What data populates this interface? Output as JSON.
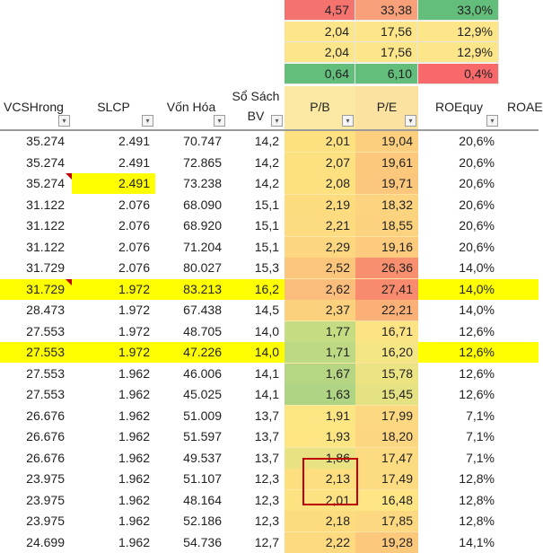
{
  "stats": [
    {
      "pb": "4,57",
      "pe": "33,38",
      "roe": "33,0%",
      "c_pb": "#f4736f",
      "c_pe": "#f8a079",
      "c_roe": "#63be7b"
    },
    {
      "pb": "2,04",
      "pe": "17,56",
      "roe": "12,9%",
      "c_pb": "#fde68a",
      "c_pe": "#fde68a",
      "c_roe": "#fde68a"
    },
    {
      "pb": "2,04",
      "pe": "17,56",
      "roe": "12,9%",
      "c_pb": "#fde68a",
      "c_pe": "#fde68a",
      "c_roe": "#fde68a"
    },
    {
      "pb": "0,64",
      "pe": "6,10",
      "roe": "0,4%",
      "c_pb": "#63be7b",
      "c_pe": "#63be7b",
      "c_roe": "#f8696b"
    }
  ],
  "headers": {
    "vcs": "VCSHrong",
    "slcp": "SLCP",
    "vonhoa": "Vốn Hóa",
    "sosach_l1": "Sổ Sách",
    "sosach_l2": "BV",
    "pb": "P/B",
    "pe": "P/E",
    "roe": "ROEquy",
    "roa": "ROAE"
  },
  "rows": [
    {
      "vcs": "35.274",
      "slcp": "2.491",
      "vonhoa": "70.747",
      "bv": "14,2",
      "pb": "2,01",
      "pe": "19,04",
      "roe": "20,6%",
      "c_pb": "#fde080",
      "c_pe": "#fccf7e"
    },
    {
      "vcs": "35.274",
      "slcp": "2.491",
      "vonhoa": "72.865",
      "bv": "14,2",
      "pb": "2,07",
      "pe": "19,61",
      "roe": "20,6%",
      "c_pb": "#fde080",
      "c_pe": "#fbc87c"
    },
    {
      "vcs": "35.274",
      "slcp": "2.491",
      "vonhoa": "73.238",
      "bv": "14,2",
      "pb": "2,08",
      "pe": "19,71",
      "roe": "20,6%",
      "c_pb": "#fde080",
      "c_pe": "#fbc77c"
    },
    {
      "vcs": "31.122",
      "slcp": "2.076",
      "vonhoa": "68.090",
      "bv": "15,1",
      "pb": "2,19",
      "pe": "18,32",
      "roe": "20,6%",
      "c_pb": "#fddc80",
      "c_pe": "#fcd47f"
    },
    {
      "vcs": "31.122",
      "slcp": "2.076",
      "vonhoa": "68.920",
      "bv": "15,1",
      "pb": "2,21",
      "pe": "18,55",
      "roe": "20,6%",
      "c_pb": "#fddb80",
      "c_pe": "#fcd27e"
    },
    {
      "vcs": "31.122",
      "slcp": "2.076",
      "vonhoa": "71.204",
      "bv": "15,1",
      "pb": "2,29",
      "pe": "19,16",
      "roe": "20,6%",
      "c_pb": "#fcd77f",
      "c_pe": "#fccb7d"
    },
    {
      "vcs": "31.729",
      "slcp": "2.076",
      "vonhoa": "80.027",
      "bv": "15,3",
      "pb": "2,52",
      "pe": "26,36",
      "roe": "14,0%",
      "c_pb": "#fcc57c",
      "c_pe": "#f8906f"
    },
    {
      "vcs": "31.729",
      "slcp": "1.972",
      "vonhoa": "83.213",
      "bv": "16,2",
      "pb": "2,62",
      "pe": "27,41",
      "roe": "14,0%",
      "c_pb": "#fbbd7b",
      "c_pe": "#f88a6e"
    },
    {
      "vcs": "28.473",
      "slcp": "1.972",
      "vonhoa": "67.438",
      "bv": "14,5",
      "pb": "2,37",
      "pe": "22,21",
      "roe": "14,0%",
      "c_pb": "#fcd17e",
      "c_pe": "#fab076"
    },
    {
      "vcs": "27.553",
      "slcp": "1.972",
      "vonhoa": "48.705",
      "bv": "14,0",
      "pb": "1,77",
      "pe": "16,71",
      "roe": "12,6%",
      "c_pb": "#c6dc82",
      "c_pe": "#fce484"
    },
    {
      "vcs": "27.553",
      "slcp": "1.972",
      "vonhoa": "47.226",
      "bv": "14,0",
      "pb": "1,71",
      "pe": "16,20",
      "roe": "12,6%",
      "c_pb": "#bed983",
      "c_pe": "#f4e684"
    },
    {
      "vcs": "27.553",
      "slcp": "1.962",
      "vonhoa": "46.006",
      "bv": "14,1",
      "pb": "1,67",
      "pe": "15,78",
      "roe": "12,6%",
      "c_pb": "#b6d683",
      "c_pe": "#ece483"
    },
    {
      "vcs": "27.553",
      "slcp": "1.962",
      "vonhoa": "45.025",
      "bv": "14,1",
      "pb": "1,63",
      "pe": "15,45",
      "roe": "12,6%",
      "c_pb": "#afd483",
      "c_pe": "#e4e283"
    },
    {
      "vcs": "26.676",
      "slcp": "1.962",
      "vonhoa": "51.009",
      "bv": "13,7",
      "pb": "1,91",
      "pe": "17,99",
      "roe": "7,1%",
      "c_pb": "#fce683",
      "c_pe": "#fcd880"
    },
    {
      "vcs": "26.676",
      "slcp": "1.962",
      "vonhoa": "51.597",
      "bv": "13,7",
      "pb": "1,93",
      "pe": "18,20",
      "roe": "7,1%",
      "c_pb": "#fde583",
      "c_pe": "#fcd680"
    },
    {
      "vcs": "26.676",
      "slcp": "1.962",
      "vonhoa": "49.537",
      "bv": "13,7",
      "pb": "1,86",
      "pe": "17,47",
      "roe": "7,1%",
      "c_pb": "#e8e283",
      "c_pe": "#fddc81"
    },
    {
      "vcs": "23.975",
      "slcp": "1.962",
      "vonhoa": "51.107",
      "bv": "12,3",
      "pb": "2,13",
      "pe": "17,49",
      "roe": "12,8%",
      "c_pb": "#fddf80",
      "c_pe": "#fddc81"
    },
    {
      "vcs": "23.975",
      "slcp": "1.962",
      "vonhoa": "48.164",
      "bv": "12,3",
      "pb": "2,01",
      "pe": "16,48",
      "roe": "12,8%",
      "c_pb": "#fde281",
      "c_pe": "#fde683"
    },
    {
      "vcs": "23.975",
      "slcp": "1.962",
      "vonhoa": "52.186",
      "bv": "12,3",
      "pb": "2,18",
      "pe": "17,85",
      "roe": "12,8%",
      "c_pb": "#fddc80",
      "c_pe": "#fcd980"
    },
    {
      "vcs": "24.699",
      "slcp": "1.962",
      "vonhoa": "54.736",
      "bv": "12,7",
      "pb": "2,22",
      "pe": "19,28",
      "roe": "14,1%",
      "c_pb": "#fdda80",
      "c_pe": "#fcc97c"
    }
  ],
  "row_highlights": [
    {
      "row": 2,
      "cols": [
        "slcp"
      ]
    },
    {
      "row": 7,
      "cols": [
        "all"
      ]
    },
    {
      "row": 10,
      "cols": [
        "all"
      ]
    }
  ],
  "comment_marks": [
    {
      "row": 2,
      "col": "vcs"
    },
    {
      "row": 7,
      "col": "vcs"
    }
  ],
  "filter_button_glyph": "▾",
  "colors": {
    "highlight": "#ffff00",
    "pb_column": "#fbe9a3",
    "pe_column": "#fbe2a0",
    "box": "#c00000"
  }
}
